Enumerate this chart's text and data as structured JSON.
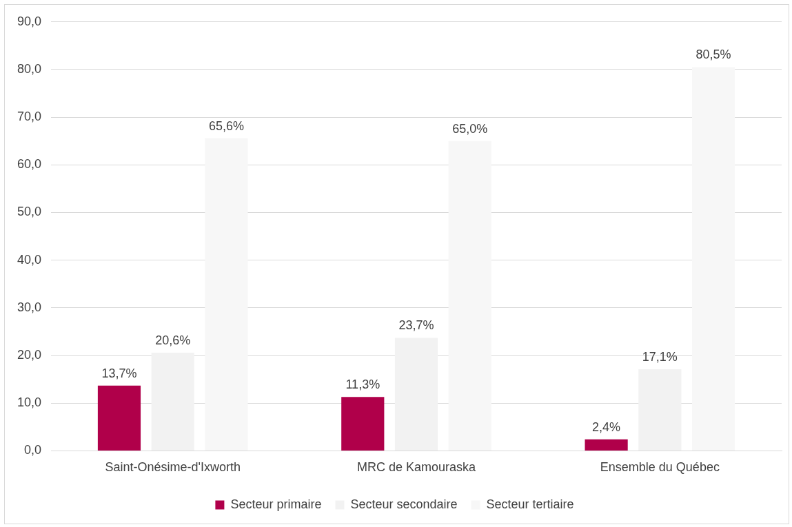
{
  "chart_data": {
    "type": "bar",
    "categories": [
      "Saint-Onésime-d'Ixworth",
      "MRC de Kamouraska",
      "Ensemble du Québec"
    ],
    "series": [
      {
        "name": "Secteur primaire",
        "color": "#b0004a",
        "values": [
          13.7,
          11.3,
          2.4
        ],
        "value_labels": [
          "13,7%",
          "11,3%",
          "2,4%"
        ]
      },
      {
        "name": "Secteur secondaire",
        "color": "#f2f2f2",
        "values": [
          20.6,
          23.7,
          17.1
        ],
        "value_labels": [
          "20,6%",
          "23,7%",
          "17,1%"
        ]
      },
      {
        "name": "Secteur tertiaire",
        "color": "#f7f7f7",
        "values": [
          65.6,
          65.0,
          80.5
        ],
        "value_labels": [
          "65,6%",
          "65,0%",
          "80,5%"
        ]
      }
    ],
    "ylim": [
      0,
      90
    ],
    "yticks": [
      {
        "value": 0,
        "label": "0,0"
      },
      {
        "value": 10,
        "label": "10,0"
      },
      {
        "value": 20,
        "label": "20,0"
      },
      {
        "value": 30,
        "label": "30,0"
      },
      {
        "value": 40,
        "label": "40,0"
      },
      {
        "value": 50,
        "label": "50,0"
      },
      {
        "value": 60,
        "label": "60,0"
      },
      {
        "value": 70,
        "label": "70,0"
      },
      {
        "value": 80,
        "label": "80,0"
      },
      {
        "value": 90,
        "label": "90,0"
      }
    ],
    "grid": "y",
    "legend": "bottom"
  }
}
